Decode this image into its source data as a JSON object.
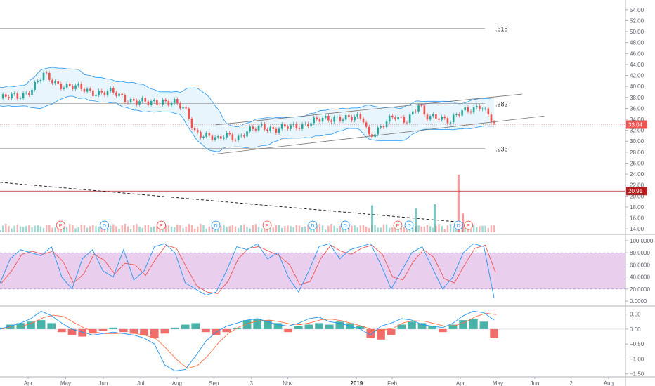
{
  "colors": {
    "up": "#26a69a",
    "down": "#ef5350",
    "band": "#2196f3",
    "band_fill": "#e3f2fd",
    "stoch_fill": "#e1bee7",
    "stoch_k": "#2196f3",
    "stoch_d": "#ef5350",
    "grid_line": "#9e9e9e",
    "hline_red": "#b71c1c",
    "axis_text": "#5d606b",
    "price_badge": "#ef5350",
    "level_badge": "#b71c1c"
  },
  "chart_data": [
    {
      "type": "line",
      "name": "price-panel",
      "ylim": [
        13,
        55
      ],
      "y_ticks": [
        "54.00",
        "52.00",
        "50.00",
        "48.00",
        "46.00",
        "44.00",
        "42.00",
        "40.00",
        "38.00",
        "36.00",
        "34.00",
        "32.00",
        "30.00",
        "28.00",
        "26.00",
        "24.00",
        "22.00",
        "20.00",
        "18.00",
        "16.00",
        "14.00"
      ],
      "y_tick_values": [
        54,
        52,
        50,
        48,
        46,
        44,
        42,
        40,
        38,
        36,
        34,
        32,
        30,
        28,
        26,
        24,
        22,
        20,
        18,
        16,
        14
      ],
      "x_ticks": [
        "Apr",
        "May",
        "Jun",
        "Jul",
        "Aug",
        "Sep",
        "3",
        "Nov",
        "2019",
        "Feb",
        "Apr",
        "May",
        "Jun",
        "2",
        "Aug"
      ],
      "fib_levels": [
        {
          "label": ".618",
          "value": 50.6
        },
        {
          "label": ".382",
          "value": 36.9
        },
        {
          "label": ".236",
          "value": 28.7
        }
      ],
      "horizontal_level": {
        "label": "20.91",
        "value": 20.91
      },
      "last_price": {
        "label": "33.04",
        "value": 33.04
      },
      "price_path": [
        [
          0,
          37.8
        ],
        [
          0.03,
          38.2
        ],
        [
          0.05,
          39.5
        ],
        [
          0.07,
          42.0
        ],
        [
          0.09,
          40.6
        ],
        [
          0.11,
          40.0
        ],
        [
          0.13,
          39.5
        ],
        [
          0.15,
          39.0
        ],
        [
          0.18,
          38.8
        ],
        [
          0.2,
          37.8
        ],
        [
          0.22,
          37.3
        ],
        [
          0.24,
          36.8
        ],
        [
          0.26,
          37.5
        ],
        [
          0.28,
          37.0
        ],
        [
          0.3,
          35.0
        ],
        [
          0.31,
          32.0
        ],
        [
          0.33,
          31.0
        ],
        [
          0.35,
          30.0
        ],
        [
          0.36,
          31.5
        ],
        [
          0.38,
          30.6
        ],
        [
          0.4,
          31.8
        ],
        [
          0.42,
          33.0
        ],
        [
          0.44,
          32.0
        ],
        [
          0.46,
          32.5
        ],
        [
          0.48,
          33.0
        ],
        [
          0.5,
          33.5
        ],
        [
          0.52,
          34.0
        ],
        [
          0.54,
          34.5
        ],
        [
          0.56,
          34.0
        ],
        [
          0.58,
          34.3
        ],
        [
          0.59,
          31.2
        ],
        [
          0.61,
          32.5
        ],
        [
          0.63,
          34.5
        ],
        [
          0.65,
          34.0
        ],
        [
          0.67,
          36.5
        ],
        [
          0.68,
          34.2
        ],
        [
          0.7,
          34.8
        ],
        [
          0.72,
          33.5
        ],
        [
          0.74,
          35.5
        ],
        [
          0.76,
          36.3
        ],
        [
          0.77,
          36.5
        ],
        [
          0.78,
          34.5
        ],
        [
          0.79,
          33.04
        ]
      ],
      "channel": {
        "upper": [
          [
            0.345,
            33.0
          ],
          [
            0.835,
            38.6
          ]
        ],
        "lower": [
          [
            0.34,
            27.6
          ],
          [
            0.87,
            34.6
          ]
        ]
      },
      "volume_spikes": [
        {
          "x": 0.595,
          "value": 18.3
        },
        {
          "x": 0.665,
          "value": 17.8
        },
        {
          "x": 0.695,
          "value": 18.5
        },
        {
          "x": 0.733,
          "value": 23.9
        },
        {
          "x": 0.74,
          "value": 16.8
        }
      ],
      "event_markers": [
        {
          "label": "E",
          "x": 0.097,
          "value": 14.4
        },
        {
          "label": "D",
          "x": 0.167,
          "value": 14.4
        },
        {
          "label": "E",
          "x": 0.258,
          "value": 14.4
        },
        {
          "label": "D",
          "x": 0.345,
          "value": 14.4
        },
        {
          "label": "E",
          "x": 0.427,
          "value": 14.4
        },
        {
          "label": "D",
          "x": 0.5,
          "value": 14.4
        },
        {
          "label": "D",
          "x": 0.552,
          "value": 14.4
        },
        {
          "label": "E",
          "x": 0.636,
          "value": 14.4
        },
        {
          "label": "D",
          "x": 0.654,
          "value": 14.4
        },
        {
          "label": "D",
          "x": 0.733,
          "value": 14.4
        },
        {
          "label": "E",
          "x": 0.749,
          "value": 14.4
        }
      ],
      "trendline": [
        [
          0,
          22.5
        ],
        [
          0.75,
          15.1
        ]
      ]
    },
    {
      "type": "line",
      "name": "stochastic-panel",
      "ylim": [
        -8,
        108
      ],
      "y_ticks": [
        "100.0000",
        "80.0000",
        "60.0000",
        "40.0000",
        "20.0000",
        "0.0000"
      ],
      "y_tick_values": [
        100,
        80,
        60,
        40,
        20,
        0
      ],
      "band": [
        20,
        80
      ],
      "k_values": [
        30,
        70,
        85,
        80,
        75,
        90,
        40,
        20,
        70,
        85,
        50,
        40,
        85,
        35,
        50,
        90,
        95,
        80,
        30,
        20,
        10,
        15,
        50,
        90,
        85,
        95,
        70,
        80,
        40,
        15,
        50,
        90,
        95,
        70,
        85,
        90,
        95,
        60,
        20,
        50,
        80,
        90,
        55,
        20,
        40,
        80,
        95,
        90,
        5
      ]
    },
    {
      "type": "bar",
      "name": "macd-panel",
      "ylim": [
        -1.6,
        0.75
      ],
      "y_ticks": [
        "0.50",
        "0.00",
        "−0.50",
        "−1.00",
        "−1.50"
      ],
      "y_tick_values": [
        0.5,
        0,
        -0.5,
        -1.0,
        -1.5
      ],
      "histogram": [
        0.05,
        0.15,
        0.2,
        0.25,
        0.3,
        0.2,
        -0.1,
        -0.2,
        -0.25,
        -0.15,
        -0.05,
        0.05,
        -0.1,
        -0.15,
        -0.2,
        -0.3,
        -0.15,
        0.05,
        0.15,
        0.2,
        -0.1,
        -0.2,
        -0.1,
        0.05,
        0.3,
        0.35,
        0.3,
        0.2,
        -0.1,
        0.1,
        0.15,
        0.2,
        0.15,
        0.25,
        0.2,
        0.1,
        -0.3,
        -0.35,
        -0.2,
        0.15,
        0.25,
        0.2,
        0.1,
        -0.1,
        0.15,
        0.3,
        0.35,
        0.25,
        -0.3
      ],
      "macd_line": [
        0.0,
        0.1,
        0.2,
        0.35,
        0.6,
        0.45,
        0.2,
        0.0,
        -0.1,
        -0.2,
        -0.15,
        -0.1,
        -0.15,
        -0.2,
        -0.3,
        -0.5,
        -1.2,
        -1.4,
        -1.35,
        -0.9,
        -0.4,
        -0.1,
        0.1,
        0.2,
        0.3,
        0.35,
        0.25,
        0.15,
        0.1,
        0.2,
        0.35,
        0.4,
        0.25,
        0.2,
        0.1,
        0.0,
        -0.2,
        0.1,
        0.2,
        0.35,
        0.3,
        0.15,
        0.1,
        0.05,
        0.2,
        0.45,
        0.6,
        0.55,
        0.3
      ]
    }
  ]
}
